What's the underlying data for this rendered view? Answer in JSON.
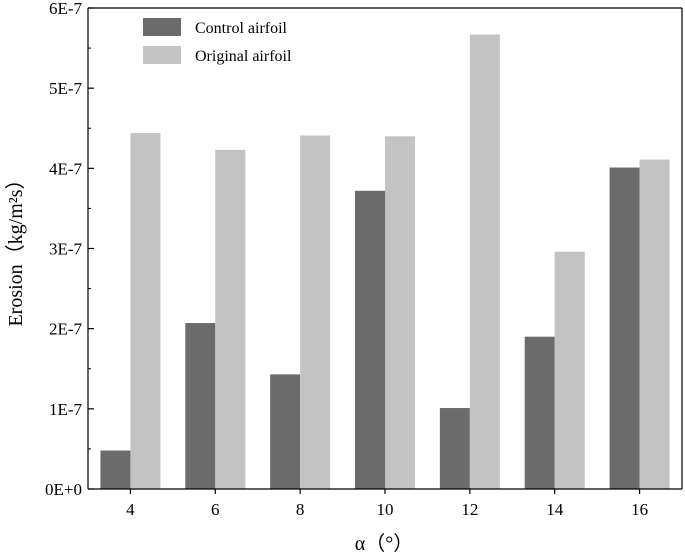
{
  "chart_data": {
    "type": "bar",
    "xlabel": "α（°）",
    "ylabel": "Erosion（kg/m²s）",
    "categories": [
      "4",
      "6",
      "8",
      "10",
      "12",
      "14",
      "16"
    ],
    "series": [
      {
        "name": "Control airfoil",
        "color": "#6b6b6b",
        "values": [
          4.8e-08,
          2.07e-07,
          1.43e-07,
          3.72e-07,
          1.01e-07,
          1.9e-07,
          4.01e-07
        ]
      },
      {
        "name": "Original airfoil",
        "color": "#c3c3c3",
        "values": [
          4.44e-07,
          4.23e-07,
          4.41e-07,
          4.4e-07,
          5.67e-07,
          2.96e-07,
          4.11e-07
        ]
      }
    ],
    "ylim": [
      0,
      6e-07
    ],
    "yticks": [
      "0E+0",
      "1E-7",
      "2E-7",
      "3E-7",
      "4E-7",
      "5E-7",
      "6E-7"
    ],
    "legend_position": "top-left",
    "grid": false
  }
}
